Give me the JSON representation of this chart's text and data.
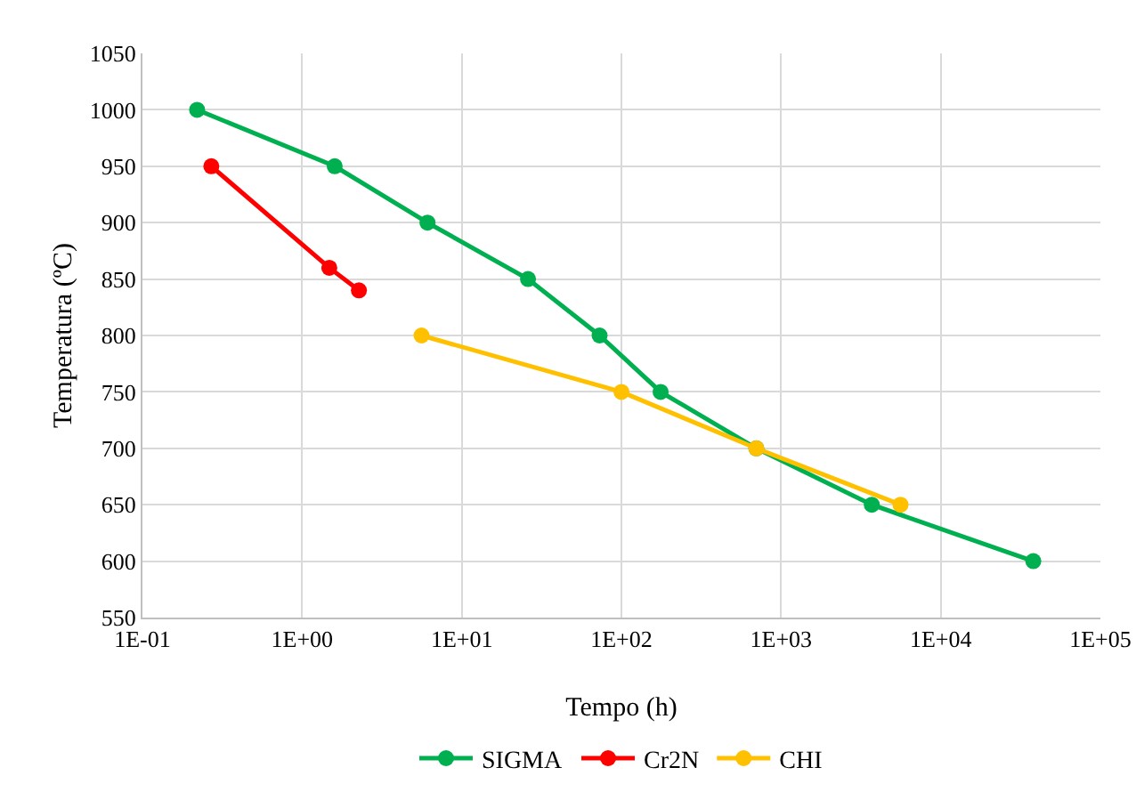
{
  "chart_data": {
    "type": "line",
    "xlabel": "Tempo (h)",
    "ylabel": "Temperatura (ºC)",
    "log": "x",
    "grid": true,
    "legend": "bottom",
    "marker": "circle",
    "line_style": "solid",
    "xlim": [
      0.1,
      100000
    ],
    "xticks": [
      {
        "value": 0.1,
        "label": "1E-01"
      },
      {
        "value": 1,
        "label": "1E+00"
      },
      {
        "value": 10,
        "label": "1E+01"
      },
      {
        "value": 100,
        "label": "1E+02"
      },
      {
        "value": 1000,
        "label": "1E+03"
      },
      {
        "value": 10000,
        "label": "1E+04"
      },
      {
        "value": 100000,
        "label": "1E+05"
      }
    ],
    "ylim": [
      550,
      1050
    ],
    "yticks": [
      550,
      600,
      650,
      700,
      750,
      800,
      850,
      900,
      950,
      1000,
      1050
    ],
    "series": [
      {
        "name": "SIGMA",
        "color": "#00b050",
        "x": [
          0.22,
          1.6,
          6.1,
          26,
          73,
          176,
          700,
          3700,
          38000
        ],
        "values": [
          1000,
          950,
          900,
          850,
          800,
          750,
          700,
          650,
          600
        ]
      },
      {
        "name": "Cr2N",
        "color": "#ff0000",
        "x": [
          0.27,
          1.48,
          2.27
        ],
        "values": [
          950,
          860,
          840
        ]
      },
      {
        "name": "CHI",
        "color": "#ffc000",
        "x": [
          5.6,
          100,
          700,
          5600
        ],
        "values": [
          800,
          750,
          700,
          650
        ]
      }
    ]
  }
}
